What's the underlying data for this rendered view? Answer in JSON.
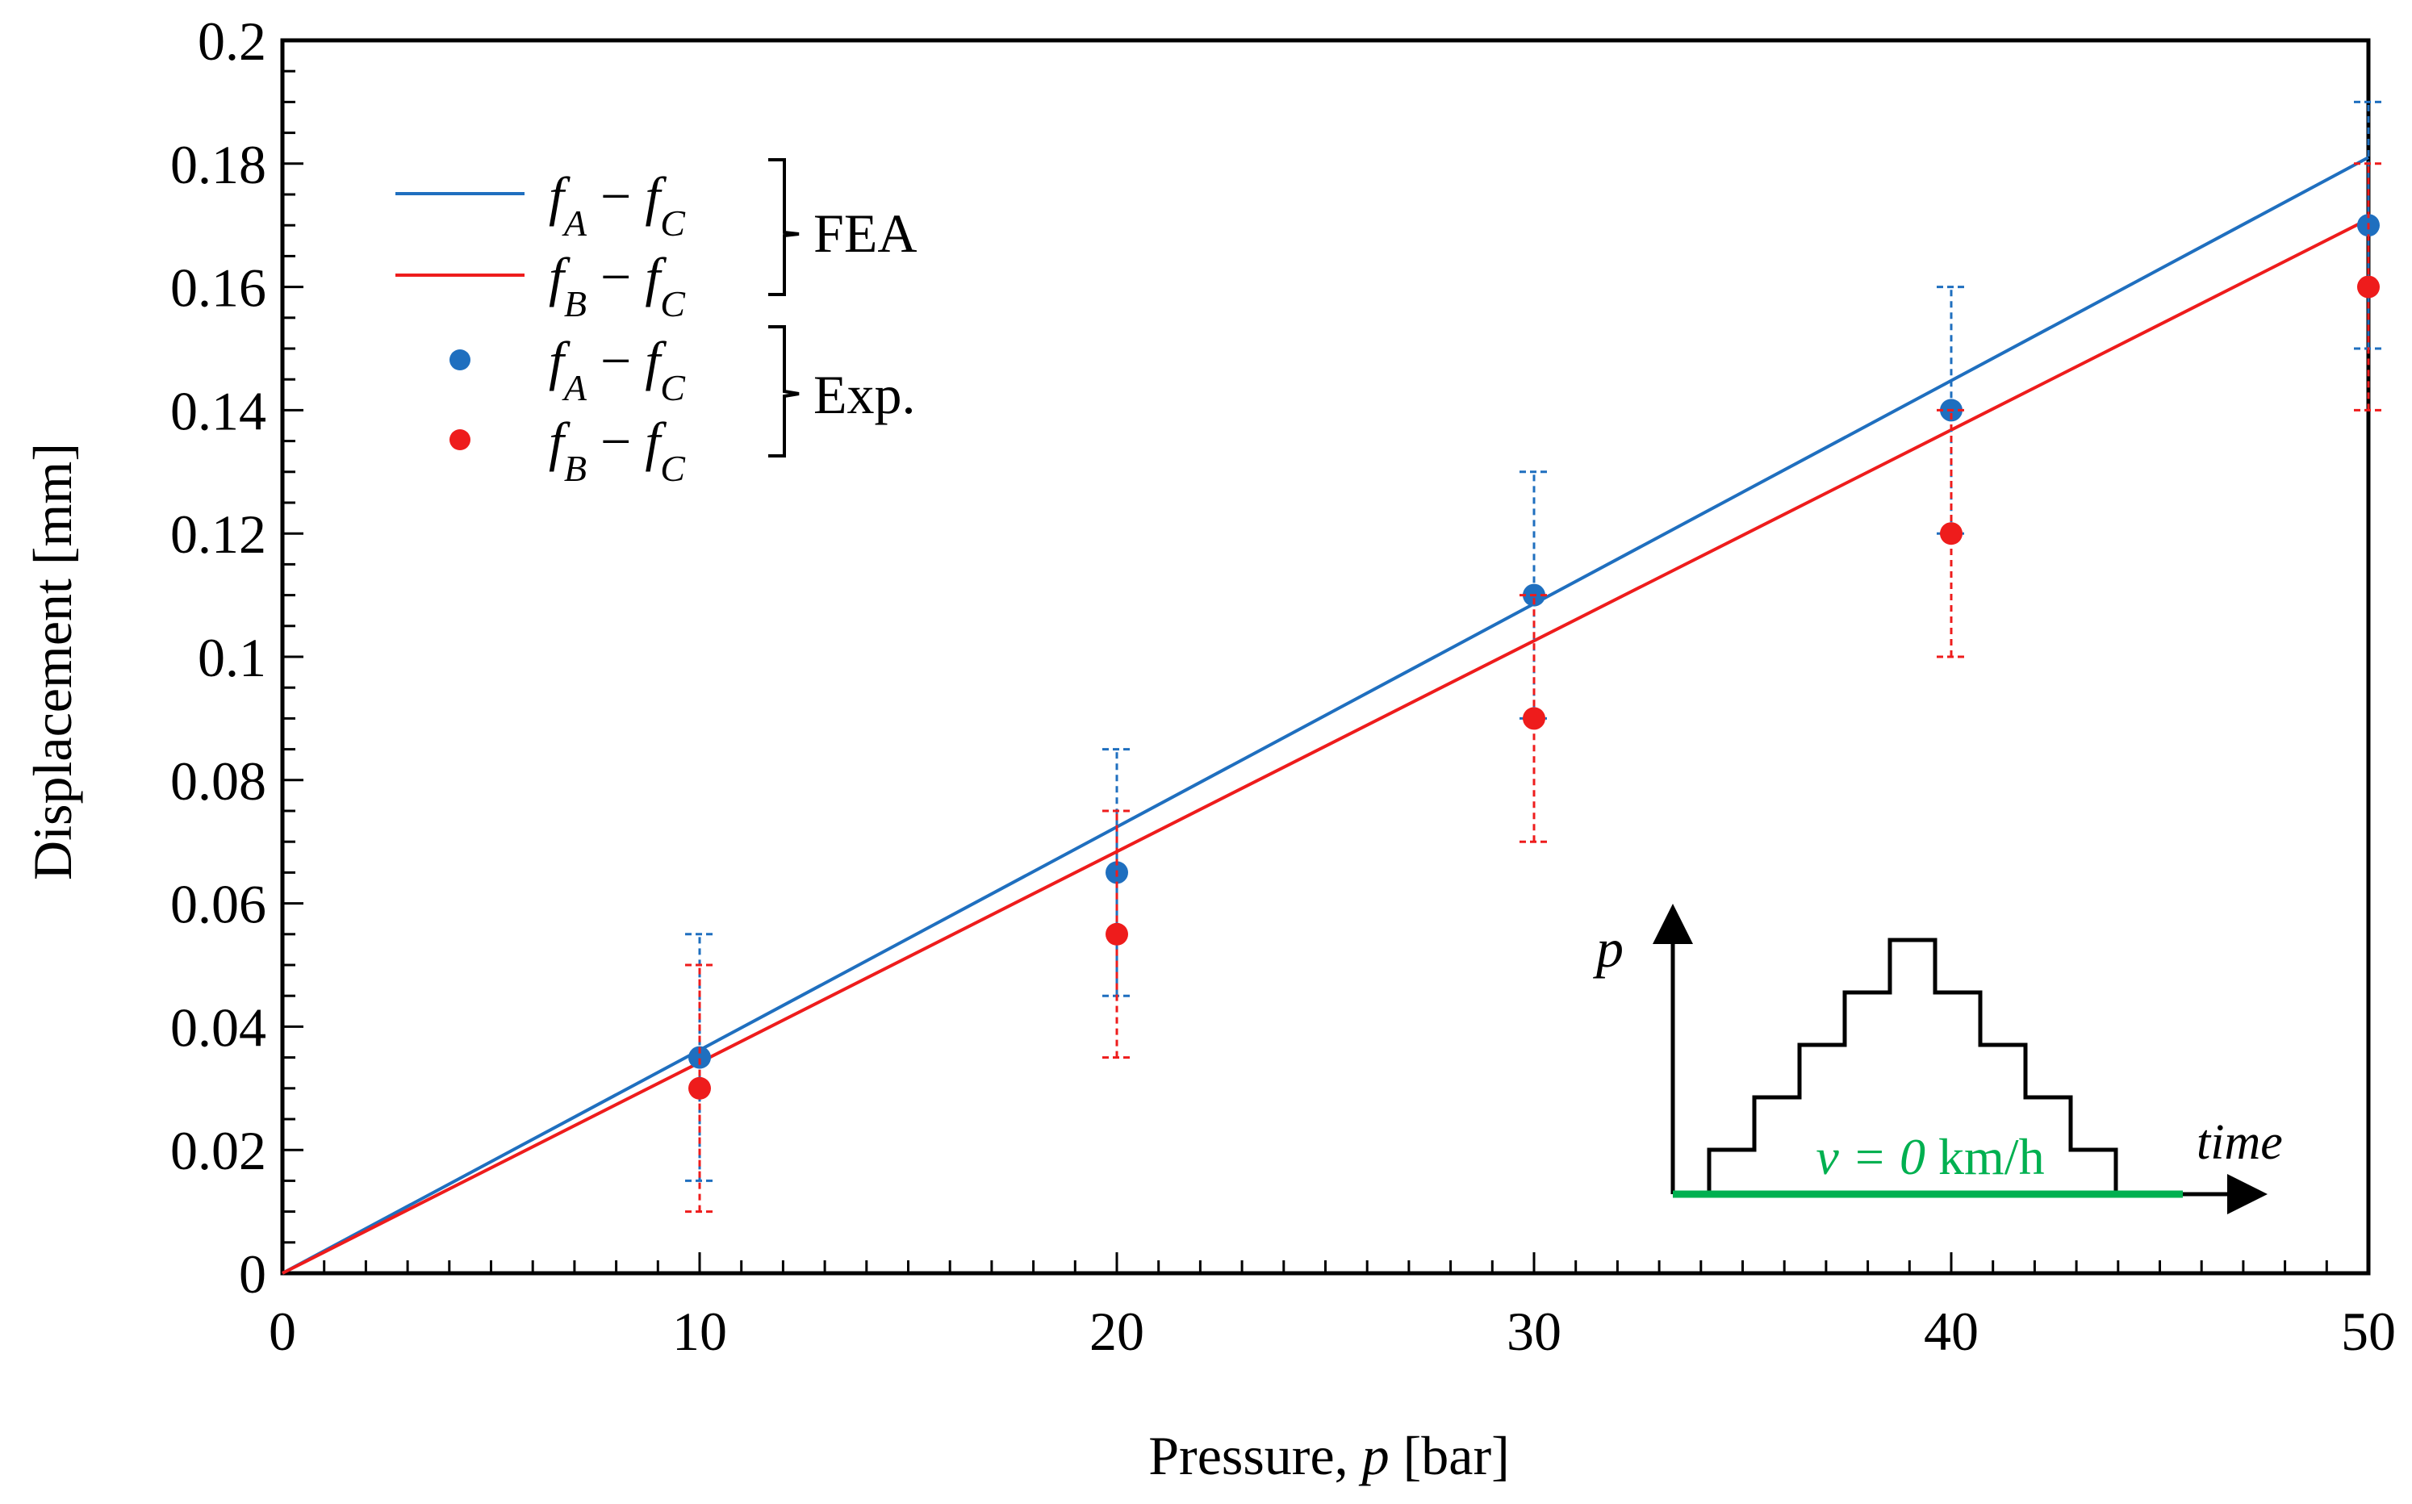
{
  "chart_data": {
    "type": "scatter",
    "title": "",
    "xlabel_prefix": "Pressure, ",
    "xlabel_var": "p",
    "xlabel_suffix": " [bar]",
    "ylabel": "Displacement [mm]",
    "xlim": [
      0,
      50
    ],
    "ylim": [
      0,
      0.2
    ],
    "x_ticks": [
      0,
      10,
      20,
      30,
      40,
      50
    ],
    "x_tick_labels": [
      "0",
      "10",
      "20",
      "30",
      "40",
      "50"
    ],
    "y_ticks": [
      0,
      0.02,
      0.04,
      0.06,
      0.08,
      0.1,
      0.12,
      0.14,
      0.16,
      0.18,
      0.2
    ],
    "y_tick_labels": [
      "0",
      "0.02",
      "0.04",
      "0.06",
      "0.08",
      "0.1",
      "0.12",
      "0.14",
      "0.16",
      "0.18",
      "0.2"
    ],
    "grid": false,
    "series": [
      {
        "name": "fA − fC (FEA)",
        "kind": "line",
        "color": "#1f6fbf",
        "x": [
          0,
          50
        ],
        "y": [
          0,
          0.181
        ]
      },
      {
        "name": "fB − fC (FEA)",
        "kind": "line",
        "color": "#ee1c1c",
        "x": [
          0,
          50
        ],
        "y": [
          0,
          0.171
        ]
      },
      {
        "name": "fA − fC (Exp.)",
        "kind": "points",
        "color": "#1f6fbf",
        "x": [
          10,
          20,
          30,
          40,
          50
        ],
        "y": [
          0.035,
          0.065,
          0.11,
          0.14,
          0.17
        ],
        "err_low": [
          0.015,
          0.045,
          0.09,
          0.12,
          0.15
        ],
        "err_high": [
          0.055,
          0.085,
          0.13,
          0.16,
          0.19
        ]
      },
      {
        "name": "fB − fC (Exp.)",
        "kind": "points",
        "color": "#ee1c1c",
        "x": [
          10,
          20,
          30,
          40,
          50
        ],
        "y": [
          0.03,
          0.055,
          0.09,
          0.12,
          0.16
        ],
        "err_low": [
          0.01,
          0.035,
          0.07,
          0.1,
          0.14
        ],
        "err_high": [
          0.05,
          0.075,
          0.11,
          0.14,
          0.18
        ]
      }
    ],
    "legend": {
      "placement": "top-left",
      "line_label_a": "f",
      "sub_a": "A",
      "sub_c": "C",
      "line_label_b": "f",
      "sub_b": "B",
      "minus": " − ",
      "group_fea": "FEA",
      "group_exp": "Exp."
    },
    "inset": {
      "placement": "bottom-right",
      "y_label": "p",
      "x_label": "time",
      "caption_var": "v = 0",
      "caption_unit": " km/h",
      "caption_color": "#00b050",
      "step_levels": [
        1,
        2,
        3,
        4,
        5,
        4,
        3,
        2,
        1
      ]
    }
  }
}
